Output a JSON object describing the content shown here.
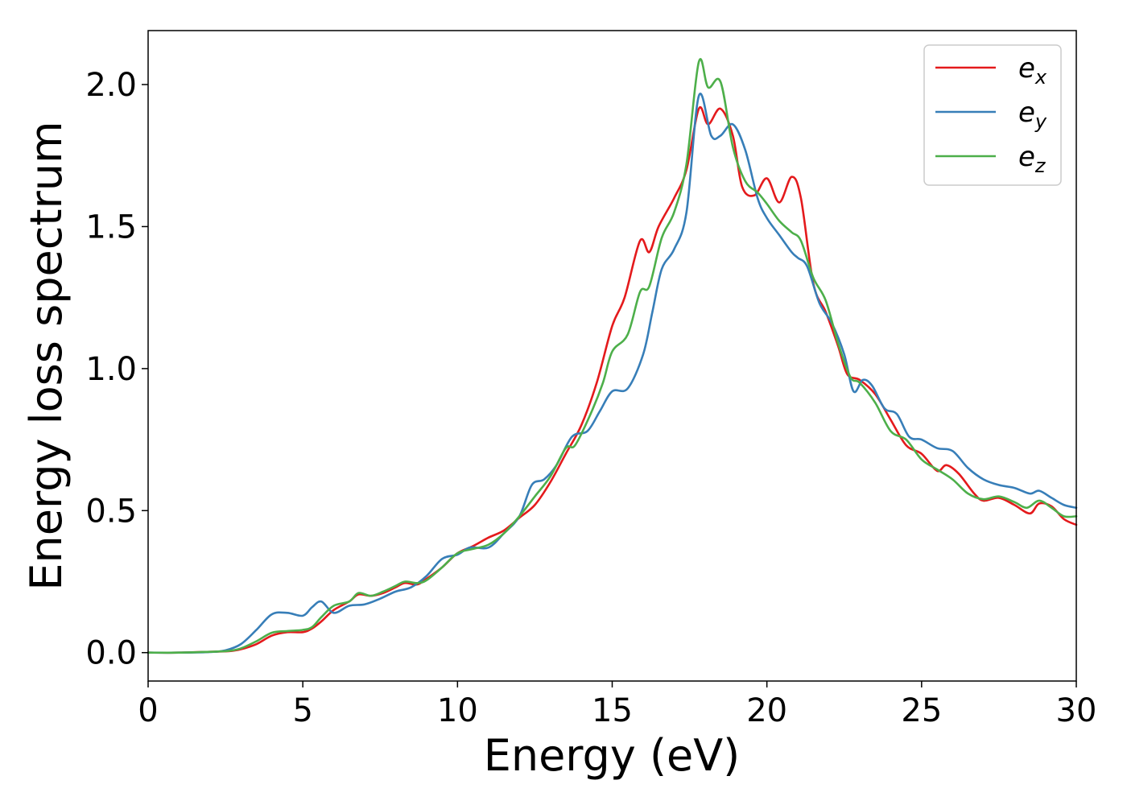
{
  "chart_data": {
    "type": "line",
    "xlabel": "Energy (eV)",
    "ylabel": "Energy loss spectrum",
    "xlim": [
      0,
      30
    ],
    "ylim": [
      -0.1,
      2.19
    ],
    "xticks": [
      0,
      5,
      10,
      15,
      20,
      25,
      30
    ],
    "xtick_labels": [
      "0",
      "5",
      "10",
      "15",
      "20",
      "25",
      "30"
    ],
    "yticks": [
      0.0,
      0.5,
      1.0,
      1.5,
      2.0
    ],
    "ytick_labels": [
      "0.0",
      "0.5",
      "1.0",
      "1.5",
      "2.0"
    ],
    "grid": false,
    "legend_position": "top-right",
    "series": [
      {
        "name": "e",
        "subscript": "x",
        "color": "#e41a1c",
        "points": [
          [
            0,
            0
          ],
          [
            1,
            0
          ],
          [
            2,
            0.003
          ],
          [
            2.6,
            0.005
          ],
          [
            3.0,
            0.012
          ],
          [
            3.5,
            0.03
          ],
          [
            4.0,
            0.06
          ],
          [
            4.5,
            0.072
          ],
          [
            5.0,
            0.072
          ],
          [
            5.3,
            0.085
          ],
          [
            5.6,
            0.11
          ],
          [
            6.0,
            0.15
          ],
          [
            6.5,
            0.18
          ],
          [
            6.8,
            0.205
          ],
          [
            7.2,
            0.2
          ],
          [
            7.6,
            0.21
          ],
          [
            8.0,
            0.23
          ],
          [
            8.3,
            0.245
          ],
          [
            8.7,
            0.24
          ],
          [
            9.0,
            0.26
          ],
          [
            9.5,
            0.3
          ],
          [
            10.0,
            0.35
          ],
          [
            10.5,
            0.375
          ],
          [
            11.0,
            0.405
          ],
          [
            11.5,
            0.43
          ],
          [
            12.0,
            0.475
          ],
          [
            12.5,
            0.52
          ],
          [
            13.0,
            0.6
          ],
          [
            13.5,
            0.7
          ],
          [
            14.0,
            0.8
          ],
          [
            14.5,
            0.95
          ],
          [
            15.0,
            1.15
          ],
          [
            15.4,
            1.25
          ],
          [
            15.9,
            1.45
          ],
          [
            16.2,
            1.41
          ],
          [
            16.5,
            1.5
          ],
          [
            17.0,
            1.6
          ],
          [
            17.4,
            1.7
          ],
          [
            17.8,
            1.915
          ],
          [
            18.1,
            1.86
          ],
          [
            18.5,
            1.915
          ],
          [
            18.9,
            1.82
          ],
          [
            19.2,
            1.64
          ],
          [
            19.6,
            1.61
          ],
          [
            20.0,
            1.67
          ],
          [
            20.4,
            1.585
          ],
          [
            20.8,
            1.675
          ],
          [
            21.1,
            1.6
          ],
          [
            21.5,
            1.3
          ],
          [
            21.9,
            1.2
          ],
          [
            22.3,
            1.08
          ],
          [
            22.6,
            0.98
          ],
          [
            23.0,
            0.96
          ],
          [
            23.5,
            0.91
          ],
          [
            24.0,
            0.82
          ],
          [
            24.5,
            0.73
          ],
          [
            25.0,
            0.7
          ],
          [
            25.5,
            0.64
          ],
          [
            25.8,
            0.66
          ],
          [
            26.2,
            0.63
          ],
          [
            26.7,
            0.56
          ],
          [
            27.0,
            0.535
          ],
          [
            27.5,
            0.545
          ],
          [
            28.0,
            0.52
          ],
          [
            28.5,
            0.49
          ],
          [
            28.8,
            0.525
          ],
          [
            29.2,
            0.515
          ],
          [
            29.6,
            0.47
          ],
          [
            30.0,
            0.45
          ]
        ]
      },
      {
        "name": "e",
        "subscript": "y",
        "color": "#377eb8",
        "points": [
          [
            0,
            0
          ],
          [
            1,
            0
          ],
          [
            2,
            0.002
          ],
          [
            2.5,
            0.008
          ],
          [
            3.0,
            0.03
          ],
          [
            3.5,
            0.08
          ],
          [
            4.0,
            0.135
          ],
          [
            4.5,
            0.14
          ],
          [
            5.0,
            0.13
          ],
          [
            5.3,
            0.16
          ],
          [
            5.6,
            0.18
          ],
          [
            6.0,
            0.14
          ],
          [
            6.5,
            0.165
          ],
          [
            7.0,
            0.17
          ],
          [
            7.5,
            0.19
          ],
          [
            8.0,
            0.215
          ],
          [
            8.5,
            0.23
          ],
          [
            9.0,
            0.27
          ],
          [
            9.5,
            0.33
          ],
          [
            10.0,
            0.345
          ],
          [
            10.4,
            0.37
          ],
          [
            11.0,
            0.37
          ],
          [
            11.5,
            0.42
          ],
          [
            12.0,
            0.48
          ],
          [
            12.4,
            0.59
          ],
          [
            12.8,
            0.61
          ],
          [
            13.2,
            0.66
          ],
          [
            13.7,
            0.76
          ],
          [
            14.2,
            0.78
          ],
          [
            14.6,
            0.85
          ],
          [
            15.0,
            0.92
          ],
          [
            15.5,
            0.93
          ],
          [
            16.0,
            1.05
          ],
          [
            16.3,
            1.2
          ],
          [
            16.6,
            1.35
          ],
          [
            17.0,
            1.42
          ],
          [
            17.4,
            1.55
          ],
          [
            17.8,
            1.96
          ],
          [
            18.2,
            1.82
          ],
          [
            18.5,
            1.82
          ],
          [
            18.9,
            1.86
          ],
          [
            19.3,
            1.77
          ],
          [
            19.7,
            1.6
          ],
          [
            20.0,
            1.53
          ],
          [
            20.4,
            1.47
          ],
          [
            20.8,
            1.41
          ],
          [
            21.0,
            1.39
          ],
          [
            21.3,
            1.36
          ],
          [
            21.7,
            1.23
          ],
          [
            22.1,
            1.16
          ],
          [
            22.5,
            1.05
          ],
          [
            22.8,
            0.92
          ],
          [
            23.1,
            0.96
          ],
          [
            23.4,
            0.94
          ],
          [
            23.8,
            0.86
          ],
          [
            24.2,
            0.84
          ],
          [
            24.6,
            0.76
          ],
          [
            25.0,
            0.75
          ],
          [
            25.5,
            0.72
          ],
          [
            26.0,
            0.71
          ],
          [
            26.5,
            0.65
          ],
          [
            27.0,
            0.61
          ],
          [
            27.5,
            0.59
          ],
          [
            28.0,
            0.58
          ],
          [
            28.5,
            0.56
          ],
          [
            28.8,
            0.57
          ],
          [
            29.2,
            0.545
          ],
          [
            29.6,
            0.52
          ],
          [
            30.0,
            0.51
          ]
        ]
      },
      {
        "name": "e",
        "subscript": "z",
        "color": "#4daf4a",
        "points": [
          [
            0,
            0
          ],
          [
            1,
            0
          ],
          [
            2,
            0.003
          ],
          [
            2.6,
            0.006
          ],
          [
            3.0,
            0.015
          ],
          [
            3.5,
            0.04
          ],
          [
            4.0,
            0.07
          ],
          [
            4.5,
            0.076
          ],
          [
            5.0,
            0.08
          ],
          [
            5.3,
            0.09
          ],
          [
            5.6,
            0.125
          ],
          [
            6.0,
            0.165
          ],
          [
            6.5,
            0.18
          ],
          [
            6.8,
            0.21
          ],
          [
            7.2,
            0.2
          ],
          [
            7.6,
            0.215
          ],
          [
            8.0,
            0.235
          ],
          [
            8.3,
            0.25
          ],
          [
            8.7,
            0.245
          ],
          [
            9.0,
            0.255
          ],
          [
            9.5,
            0.3
          ],
          [
            10.0,
            0.35
          ],
          [
            10.5,
            0.365
          ],
          [
            11.0,
            0.38
          ],
          [
            11.5,
            0.42
          ],
          [
            12.0,
            0.48
          ],
          [
            12.5,
            0.55
          ],
          [
            13.0,
            0.62
          ],
          [
            13.5,
            0.72
          ],
          [
            13.8,
            0.73
          ],
          [
            14.3,
            0.84
          ],
          [
            14.7,
            0.95
          ],
          [
            15.0,
            1.06
          ],
          [
            15.5,
            1.12
          ],
          [
            15.9,
            1.27
          ],
          [
            16.2,
            1.29
          ],
          [
            16.6,
            1.46
          ],
          [
            17.0,
            1.55
          ],
          [
            17.4,
            1.72
          ],
          [
            17.8,
            2.08
          ],
          [
            18.1,
            1.99
          ],
          [
            18.5,
            2.01
          ],
          [
            18.9,
            1.78
          ],
          [
            19.3,
            1.66
          ],
          [
            19.7,
            1.62
          ],
          [
            20.0,
            1.58
          ],
          [
            20.4,
            1.52
          ],
          [
            20.8,
            1.48
          ],
          [
            21.1,
            1.45
          ],
          [
            21.5,
            1.32
          ],
          [
            21.9,
            1.24
          ],
          [
            22.3,
            1.09
          ],
          [
            22.7,
            0.97
          ],
          [
            23.0,
            0.95
          ],
          [
            23.5,
            0.88
          ],
          [
            24.0,
            0.78
          ],
          [
            24.5,
            0.75
          ],
          [
            25.0,
            0.68
          ],
          [
            25.5,
            0.645
          ],
          [
            26.0,
            0.61
          ],
          [
            26.5,
            0.56
          ],
          [
            27.0,
            0.54
          ],
          [
            27.5,
            0.55
          ],
          [
            28.0,
            0.53
          ],
          [
            28.4,
            0.51
          ],
          [
            28.8,
            0.535
          ],
          [
            29.2,
            0.51
          ],
          [
            29.6,
            0.48
          ],
          [
            30.0,
            0.48
          ]
        ]
      }
    ]
  }
}
